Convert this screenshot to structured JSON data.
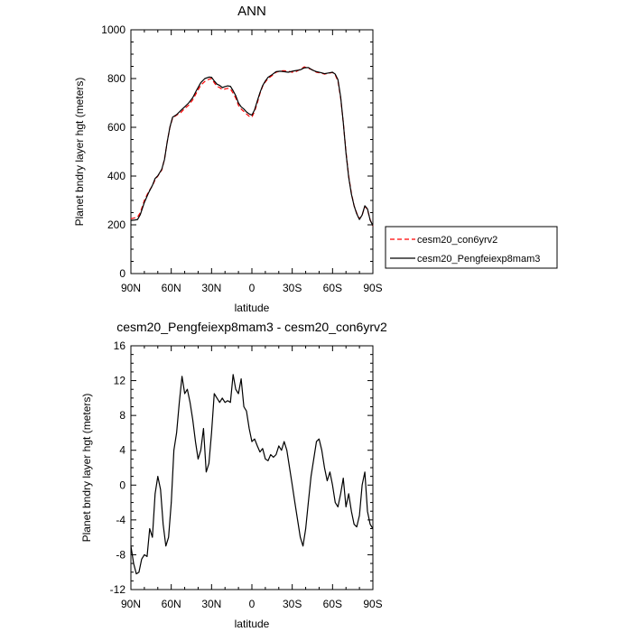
{
  "chart_data": [
    {
      "type": "line",
      "title": "ANN",
      "xlabel": "latitude",
      "ylabel": "Planet bndry layer hgt (meters)",
      "xlim": [
        90,
        -90
      ],
      "ylim": [
        0,
        1000
      ],
      "xticks": [
        90,
        60,
        30,
        0,
        -30,
        -60,
        -90
      ],
      "xtick_labels": [
        "90N",
        "60N",
        "30N",
        "0",
        "30S",
        "60S",
        "90S"
      ],
      "yticks": [
        0,
        200,
        400,
        600,
        800,
        1000
      ],
      "ytick_labels": [
        "0",
        "200",
        "400",
        "600",
        "800",
        "1000"
      ],
      "legend": {
        "placement": "right",
        "entries": [
          "cesm20_con6yrv2",
          "cesm20_Pengfeiexp8mam3"
        ]
      },
      "series": [
        {
          "name": "cesm20_con6yrv2",
          "color": "#ff0000",
          "style": "dashed",
          "x": [
            90,
            87,
            85,
            83,
            80,
            77,
            74,
            72,
            70,
            67,
            65,
            63,
            61,
            59,
            56,
            53,
            50,
            47,
            44,
            41,
            38,
            35,
            32,
            30,
            28,
            26,
            24,
            22,
            20,
            18,
            16,
            14,
            12,
            10,
            8,
            6,
            4,
            2,
            0,
            -2,
            -4,
            -6,
            -8,
            -10,
            -12,
            -15,
            -18,
            -21,
            -24,
            -27,
            -30,
            -33,
            -36,
            -39,
            -42,
            -45,
            -48,
            -51,
            -54,
            -57,
            -60,
            -62,
            -64,
            -66,
            -68,
            -70,
            -72,
            -74,
            -76,
            -78,
            -80,
            -82,
            -84,
            -86,
            -88,
            -90
          ],
          "y": [
            225,
            229,
            232,
            250,
            300,
            335,
            360,
            385,
            400,
            425,
            470,
            540,
            600,
            638,
            650,
            660,
            677,
            691,
            713,
            744,
            773,
            788,
            797,
            800,
            783,
            768,
            763,
            755,
            757,
            760,
            757,
            740,
            720,
            690,
            675,
            665,
            655,
            645,
            642,
            665,
            700,
            738,
            768,
            786,
            800,
            812,
            826,
            831,
            832,
            830,
            826,
            829,
            838,
            848,
            842,
            836,
            826,
            823,
            818,
            822,
            825,
            815,
            790,
            720,
            620,
            500,
            400,
            330,
            278,
            248,
            225,
            240,
            276,
            263,
            220,
            195
          ]
        },
        {
          "name": "cesm20_Pengfeiexp8mam3",
          "color": "#000000",
          "style": "solid",
          "x": [
            90,
            87,
            85,
            83,
            80,
            77,
            74,
            72,
            70,
            67,
            65,
            63,
            61,
            59,
            56,
            53,
            50,
            47,
            44,
            41,
            38,
            35,
            32,
            30,
            28,
            26,
            24,
            22,
            20,
            18,
            16,
            14,
            12,
            10,
            8,
            6,
            4,
            2,
            0,
            -2,
            -4,
            -6,
            -8,
            -10,
            -12,
            -15,
            -18,
            -21,
            -24,
            -27,
            -30,
            -33,
            -36,
            -39,
            -42,
            -45,
            -48,
            -51,
            -54,
            -57,
            -60,
            -62,
            -64,
            -66,
            -68,
            -70,
            -72,
            -74,
            -76,
            -78,
            -80,
            -82,
            -84,
            -86,
            -88,
            -90
          ],
          "y": [
            218,
            220,
            222,
            242,
            292,
            330,
            362,
            390,
            401,
            428,
            468,
            540,
            601,
            642,
            652,
            668,
            684,
            700,
            722,
            754,
            783,
            800,
            806,
            805,
            790,
            777,
            772,
            763,
            767,
            770,
            768,
            750,
            730,
            700,
            684,
            675,
            663,
            655,
            650,
            672,
            708,
            742,
            771,
            790,
            805,
            816,
            828,
            830,
            828,
            826,
            830,
            833,
            836,
            844,
            845,
            835,
            828,
            825,
            820,
            823,
            826,
            818,
            795,
            725,
            620,
            495,
            395,
            326,
            278,
            245,
            222,
            240,
            278,
            265,
            219,
            197
          ]
        }
      ]
    },
    {
      "type": "line",
      "title": "cesm20_Pengfeiexp8mam3 - cesm20_con6yrv2",
      "xlabel": "latitude",
      "ylabel": "Planet bndry layer hgt (meters)",
      "xlim": [
        90,
        -90
      ],
      "ylim": [
        -12,
        16
      ],
      "xticks": [
        90,
        60,
        30,
        0,
        -30,
        -60,
        -90
      ],
      "xtick_labels": [
        "90N",
        "60N",
        "30N",
        "0",
        "30S",
        "60S",
        "90S"
      ],
      "yticks": [
        -12,
        -8,
        -4,
        0,
        4,
        8,
        12,
        16
      ],
      "ytick_labels": [
        "-12",
        "-8",
        "-4",
        "0",
        "4",
        "8",
        "12",
        "16"
      ],
      "series": [
        {
          "color": "#000000",
          "style": "solid",
          "x": [
            90,
            88,
            86,
            84,
            82,
            80,
            78,
            76,
            74,
            72,
            70,
            68,
            66,
            64,
            62,
            60,
            58,
            56,
            54,
            52,
            50,
            48,
            46,
            44,
            42,
            40,
            38,
            36,
            34,
            32,
            30,
            28,
            26,
            24,
            22,
            20,
            18,
            16,
            14,
            12,
            10,
            8,
            6,
            4,
            2,
            0,
            -2,
            -4,
            -6,
            -8,
            -10,
            -12,
            -14,
            -16,
            -18,
            -20,
            -22,
            -24,
            -26,
            -28,
            -30,
            -32,
            -34,
            -36,
            -38,
            -40,
            -42,
            -44,
            -46,
            -48,
            -50,
            -52,
            -54,
            -56,
            -58,
            -60,
            -62,
            -64,
            -66,
            -68,
            -70,
            -72,
            -74,
            -76,
            -78,
            -80,
            -82,
            -84,
            -86,
            -88,
            -90
          ],
          "y": [
            -7,
            -9,
            -10.2,
            -10,
            -8.5,
            -8,
            -8.2,
            -5,
            -6,
            -1,
            1,
            -0.5,
            -4.5,
            -7,
            -6,
            -2,
            4,
            6,
            9.5,
            12.5,
            10.5,
            11,
            9.5,
            7.5,
            5,
            3,
            4,
            6.5,
            1.5,
            2.5,
            6,
            10.5,
            10,
            9.5,
            10,
            9.5,
            9.7,
            9.5,
            12.7,
            11,
            10.5,
            12.2,
            9,
            8.5,
            6.5,
            5,
            5.3,
            4.5,
            3.8,
            4.2,
            3,
            2.8,
            3.5,
            3.2,
            3.5,
            4.5,
            4,
            5,
            4,
            2,
            0,
            -2,
            -4,
            -6,
            -7,
            -5,
            -2,
            1,
            3,
            5,
            5.3,
            4,
            2,
            0.5,
            1.5,
            0,
            -2,
            -2.5,
            -1,
            0.8,
            -2.5,
            -1,
            -3,
            -4.5,
            -4.8,
            -3.5,
            0,
            1.5,
            -3,
            -4.5,
            -5
          ]
        }
      ]
    }
  ]
}
